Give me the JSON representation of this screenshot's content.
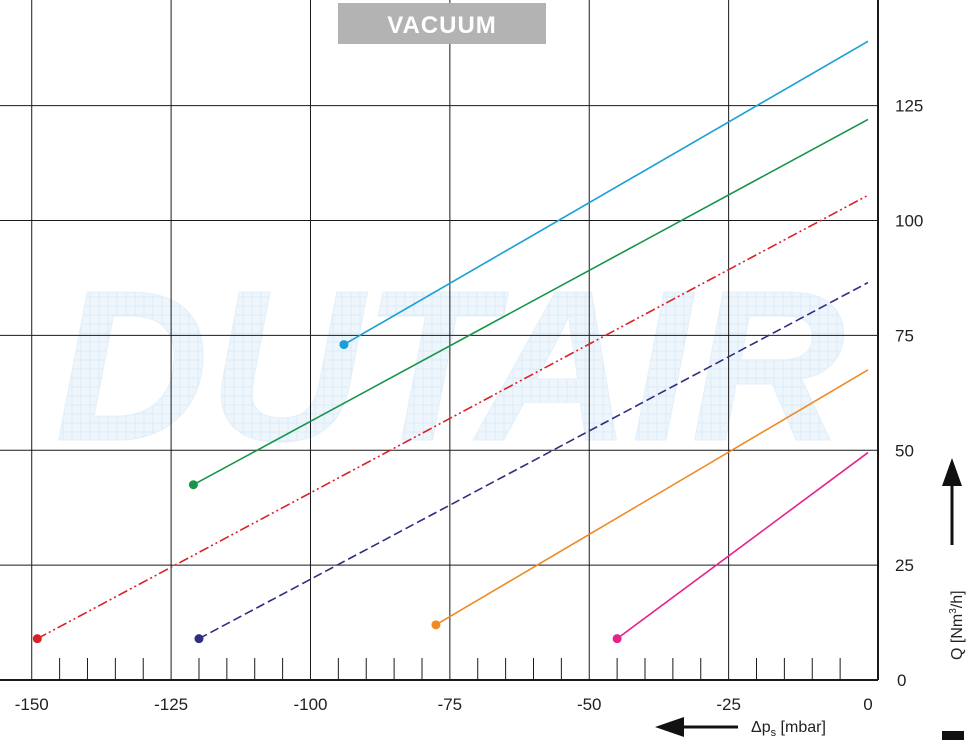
{
  "chart_data": {
    "type": "line",
    "title": "VACUUM",
    "watermark": "DUTAIR",
    "x_axis": {
      "label_main": "Δp",
      "label_sub": "s",
      "label_unit": "[mbar]",
      "range": [
        -153,
        0
      ],
      "ticks": [
        -150,
        -125,
        -100,
        -75,
        -50,
        -25,
        0
      ],
      "tick_labels": [
        "-150",
        "-125",
        "-100",
        "-75",
        "-50",
        "-25",
        "0"
      ],
      "minor_step": 5,
      "arrow_direction": "left"
    },
    "y_axis": {
      "label_main": "Q [Nm",
      "label_sup": "3",
      "label_end": "/h]",
      "range": [
        0,
        148
      ],
      "ticks": [
        0,
        25,
        50,
        75,
        100,
        125
      ],
      "tick_labels": [
        "0",
        "25",
        "50",
        "75",
        "100",
        "125"
      ],
      "arrow_direction": "up",
      "position": "right"
    },
    "grid": true,
    "series": [
      {
        "color": "#1a9fd6",
        "style": "solid",
        "x": [
          -94,
          0
        ],
        "y": [
          73,
          139
        ]
      },
      {
        "color": "#17954a",
        "style": "solid",
        "x": [
          -121,
          0
        ],
        "y": [
          42.5,
          122
        ]
      },
      {
        "color": "#d92127",
        "style": "dashdot",
        "x": [
          -149,
          0
        ],
        "y": [
          9,
          105.5
        ]
      },
      {
        "color": "#2e2f80",
        "style": "dashed",
        "x": [
          -120,
          0
        ],
        "y": [
          9,
          86.5
        ]
      },
      {
        "color": "#f08a24",
        "style": "solid",
        "x": [
          -77.5,
          0
        ],
        "y": [
          12,
          67.5
        ]
      },
      {
        "color": "#e6218e",
        "style": "solid",
        "x": [
          -45,
          0
        ],
        "y": [
          9,
          49.5
        ]
      }
    ]
  }
}
